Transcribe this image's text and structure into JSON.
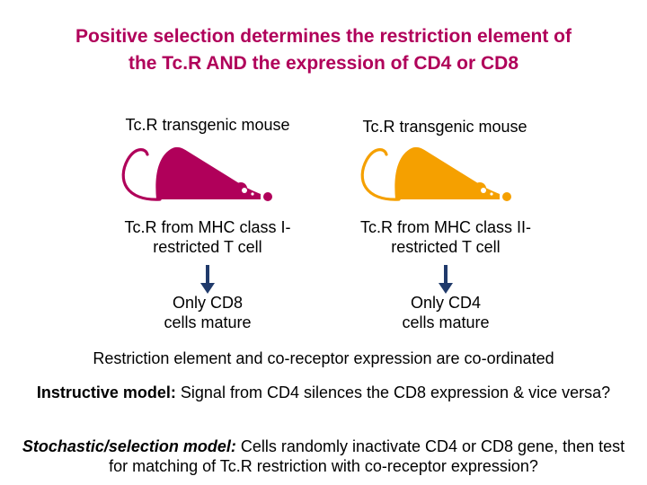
{
  "title": {
    "line1": "Positive selection determines the restriction element of",
    "line2": "the Tc.R AND the expression of CD4 or CD8"
  },
  "left": {
    "heading": "Tc.R transgenic mouse",
    "source_line1": "Tc.R from MHC class I-",
    "source_line2": "restricted T cell",
    "result_line1": "Only CD8",
    "result_line2": "cells mature",
    "mouse_color": "#b0005a"
  },
  "right": {
    "heading": "Tc.R transgenic mouse",
    "source_line1": "Tc.R from MHC class II-",
    "source_line2": "restricted T cell",
    "result_line1": "Only CD4",
    "result_line2": "cells mature",
    "mouse_color": "#f5a000"
  },
  "summary": "Restriction element and co-receptor expression are co-ordinated",
  "instructive": {
    "label": "Instructive model:",
    "text": " Signal from CD4 silences the CD8 expression & vice versa?"
  },
  "stochastic": {
    "label": "Stochastic/selection model:",
    "text": " Cells randomly inactivate CD4 or CD8 gene, then test for matching of Tc.R restriction with co-receptor expression?"
  },
  "icons": {
    "mouse": "mouse-icon",
    "arrow": "down-arrow-icon"
  }
}
